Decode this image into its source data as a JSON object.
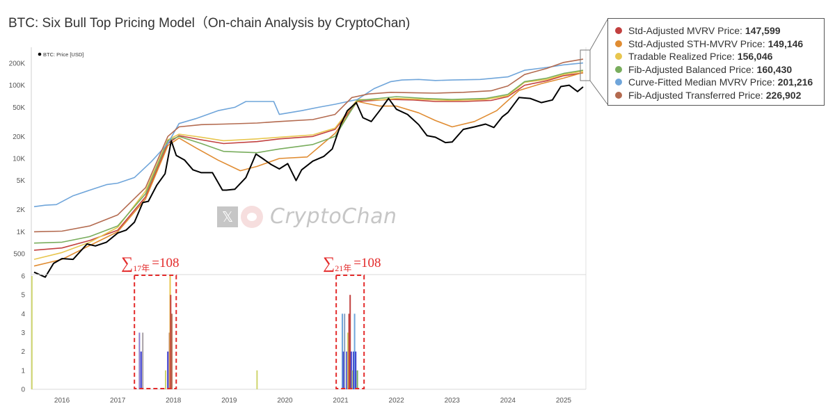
{
  "title": "BTC: Six Bull Top Pricing Model（On-chain Analysis by CryptoChan)",
  "watermark": "CryptoChan",
  "watermark_icon": "x-logo-icon",
  "chart_data": [
    {
      "type": "line",
      "log_scale": true,
      "legend_label": "BTC: Price [USD]",
      "y_ticks": [
        500,
        1000,
        2000,
        5000,
        10000,
        20000,
        50000,
        100000,
        200000
      ],
      "y_tick_labels": [
        "500",
        "1K",
        "2K",
        "5K",
        "10K",
        "20K",
        "50K",
        "100K",
        "200K"
      ],
      "x_ticks": [
        2016,
        2017,
        2018,
        2019,
        2020,
        2021,
        2022,
        2023,
        2024,
        2025
      ],
      "x_range": [
        2015.45,
        2025.4
      ],
      "y_range": [
        260,
        330000
      ],
      "grid": false,
      "series": [
        {
          "name": "BTC: Price [USD]",
          "color": "#000000",
          "x": [
            2015.5,
            2015.7,
            2015.85,
            2016.0,
            2016.2,
            2016.45,
            2016.6,
            2016.8,
            2017.0,
            2017.15,
            2017.3,
            2017.45,
            2017.55,
            2017.7,
            2017.85,
            2017.96,
            2018.05,
            2018.2,
            2018.35,
            2018.5,
            2018.7,
            2018.88,
            2018.95,
            2019.1,
            2019.3,
            2019.48,
            2019.6,
            2019.75,
            2019.9,
            2020.05,
            2020.2,
            2020.3,
            2020.5,
            2020.7,
            2020.85,
            2021.0,
            2021.12,
            2021.28,
            2021.4,
            2021.55,
            2021.7,
            2021.86,
            2022.0,
            2022.2,
            2022.4,
            2022.55,
            2022.7,
            2022.88,
            2023.0,
            2023.2,
            2023.4,
            2023.6,
            2023.75,
            2023.9,
            2024.0,
            2024.2,
            2024.4,
            2024.6,
            2024.8,
            2024.95,
            2025.1,
            2025.25,
            2025.35
          ],
          "y": [
            280,
            240,
            370,
            430,
            420,
            680,
            640,
            720,
            960,
            1050,
            1350,
            2500,
            2600,
            4300,
            6200,
            17500,
            11000,
            9500,
            7000,
            6400,
            6400,
            3700,
            3700,
            3800,
            5500,
            11500,
            10000,
            8300,
            7200,
            8500,
            5000,
            7000,
            9200,
            10700,
            13500,
            29000,
            45000,
            58000,
            36000,
            32000,
            45000,
            66000,
            47000,
            40000,
            29000,
            20500,
            19500,
            16500,
            16800,
            25000,
            27000,
            29500,
            26500,
            37000,
            42500,
            68000,
            66000,
            58000,
            63000,
            96000,
            100000,
            82000,
            95000
          ]
        },
        {
          "name": "Std-Adjusted MVRV Price",
          "color": "#c2403f",
          "x": [
            2015.5,
            2016.0,
            2016.5,
            2017.0,
            2017.5,
            2017.9,
            2018.1,
            2018.5,
            2018.9,
            2019.5,
            2019.9,
            2020.5,
            2020.9,
            2021.3,
            2021.6,
            2021.9,
            2022.3,
            2022.7,
            2023.2,
            2023.7,
            2024.0,
            2024.3,
            2024.7,
            2025.0,
            2025.35
          ],
          "y": [
            560,
            600,
            760,
            1050,
            3000,
            16000,
            20500,
            18000,
            16000,
            17000,
            18500,
            20000,
            25000,
            60000,
            62000,
            64000,
            63000,
            60000,
            60000,
            62000,
            70000,
            100000,
            115000,
            135000,
            147599
          ]
        },
        {
          "name": "Std-Adjusted STH-MVRV Price",
          "color": "#e08c32",
          "x": [
            2015.5,
            2016.0,
            2016.5,
            2017.0,
            2017.5,
            2017.9,
            2018.1,
            2018.4,
            2018.8,
            2019.2,
            2019.5,
            2019.9,
            2020.4,
            2020.9,
            2021.3,
            2021.7,
            2022.0,
            2022.4,
            2022.7,
            2023.0,
            2023.4,
            2023.8,
            2024.2,
            2024.6,
            2025.0,
            2025.35
          ],
          "y": [
            340,
            420,
            650,
            1000,
            2800,
            15000,
            19000,
            14000,
            9500,
            6800,
            7800,
            10000,
            10500,
            22000,
            60000,
            52000,
            52000,
            42000,
            33000,
            27000,
            32000,
            45000,
            85000,
            105000,
            125000,
            149146
          ]
        },
        {
          "name": "Tradable Realized Price",
          "color": "#e8c64e",
          "x": [
            2015.5,
            2016.0,
            2016.5,
            2017.0,
            2017.5,
            2017.9,
            2018.1,
            2018.5,
            2018.9,
            2019.5,
            2019.9,
            2020.5,
            2020.9,
            2021.3,
            2021.7,
            2022.0,
            2022.5,
            2023.0,
            2023.6,
            2024.0,
            2024.3,
            2024.7,
            2025.0,
            2025.35
          ],
          "y": [
            420,
            520,
            720,
            1150,
            3600,
            18000,
            21500,
            19500,
            17500,
            18500,
            19500,
            21000,
            26000,
            64000,
            63000,
            66000,
            64000,
            62000,
            64000,
            72000,
            110000,
            120000,
            140000,
            156046
          ]
        },
        {
          "name": "Fib-Adjusted Balanced Price",
          "color": "#79ad5d",
          "x": [
            2015.5,
            2016.0,
            2016.5,
            2017.0,
            2017.5,
            2017.9,
            2018.1,
            2018.5,
            2018.9,
            2019.5,
            2019.9,
            2020.5,
            2020.9,
            2021.3,
            2021.7,
            2022.0,
            2022.5,
            2023.0,
            2023.6,
            2024.0,
            2024.3,
            2024.7,
            2025.0,
            2025.35
          ],
          "y": [
            700,
            720,
            860,
            1200,
            3300,
            17500,
            20000,
            16000,
            12500,
            12000,
            13500,
            15500,
            20000,
            62000,
            66000,
            70000,
            66000,
            64000,
            66000,
            75000,
            112000,
            125000,
            145000,
            160430
          ]
        },
        {
          "name": "Curve-Fitted Median MVRV Price",
          "color": "#6fa5da",
          "x": [
            2015.5,
            2015.7,
            2015.9,
            2016.2,
            2016.5,
            2016.8,
            2017.0,
            2017.3,
            2017.6,
            2017.9,
            2018.1,
            2018.4,
            2018.8,
            2019.1,
            2019.3,
            2019.8,
            2019.9,
            2020.3,
            2020.6,
            2020.9,
            2021.3,
            2021.6,
            2021.9,
            2022.1,
            2022.4,
            2022.7,
            2023.0,
            2023.5,
            2024.0,
            2024.3,
            2024.7,
            2025.0,
            2025.35
          ],
          "y": [
            2200,
            2300,
            2350,
            3100,
            3700,
            4400,
            4600,
            5500,
            9000,
            16000,
            30000,
            35000,
            45000,
            50000,
            60000,
            60000,
            40000,
            45000,
            50000,
            55000,
            64000,
            90000,
            112000,
            118000,
            120000,
            116000,
            118000,
            120000,
            130000,
            160000,
            175000,
            190000,
            201216
          ]
        },
        {
          "name": "Fib-Adjusted Transferred Price",
          "color": "#b36a4f",
          "x": [
            2015.5,
            2016.0,
            2016.5,
            2017.0,
            2017.5,
            2017.9,
            2018.1,
            2018.5,
            2018.9,
            2019.5,
            2019.9,
            2020.5,
            2020.9,
            2021.2,
            2021.5,
            2021.9,
            2022.3,
            2022.7,
            2023.2,
            2023.7,
            2024.0,
            2024.3,
            2024.7,
            2025.0,
            2025.35
          ],
          "y": [
            1000,
            1020,
            1200,
            1700,
            4000,
            20000,
            27000,
            29000,
            29500,
            30500,
            32000,
            34000,
            40000,
            68000,
            76000,
            80000,
            79000,
            78000,
            80000,
            84000,
            98000,
            140000,
            170000,
            205000,
            226902
          ]
        }
      ]
    },
    {
      "type": "bar",
      "y_ticks": [
        0,
        1,
        2,
        3,
        4,
        5,
        6
      ],
      "y_range": [
        0,
        6
      ],
      "x_ticks": [
        2016,
        2017,
        2018,
        2019,
        2020,
        2021,
        2022,
        2023,
        2024,
        2025
      ],
      "x_range": [
        2015.45,
        2025.4
      ],
      "annotations": [
        {
          "text_prefix": "∑",
          "subscript": "17年",
          "text_suffix": "=108",
          "x_start": 2017.3,
          "x_end": 2018.05
        },
        {
          "text_prefix": "∑",
          "subscript": "21年",
          "text_suffix": "=108",
          "x_start": 2020.92,
          "x_end": 2021.42
        }
      ],
      "bars": [
        {
          "x": 2015.46,
          "value": 6,
          "color": "#cfd56e"
        },
        {
          "x": 2017.39,
          "value": 3,
          "color": "#8d7fd0"
        },
        {
          "x": 2017.42,
          "value": 2,
          "color": "#3d3fd1"
        },
        {
          "x": 2017.45,
          "value": 3,
          "color": "#a7a0a6"
        },
        {
          "x": 2017.86,
          "value": 1,
          "color": "#cfd56e"
        },
        {
          "x": 2017.9,
          "value": 2,
          "color": "#3d3fd1"
        },
        {
          "x": 2017.93,
          "value": 3,
          "color": "#b36a4f"
        },
        {
          "x": 2017.94,
          "value": 6,
          "color": "#e8c64e"
        },
        {
          "x": 2017.95,
          "value": 5,
          "color": "#c2403f"
        },
        {
          "x": 2017.97,
          "value": 4,
          "color": "#b36a4f"
        },
        {
          "x": 2019.5,
          "value": 1,
          "color": "#cfd56e"
        },
        {
          "x": 2021.03,
          "value": 4,
          "color": "#6fa5da"
        },
        {
          "x": 2021.05,
          "value": 2,
          "color": "#3d3fd1"
        },
        {
          "x": 2021.07,
          "value": 4,
          "color": "#8aa0c0"
        },
        {
          "x": 2021.11,
          "value": 2,
          "color": "#3d3fd1"
        },
        {
          "x": 2021.13,
          "value": 3,
          "color": "#cfd56e"
        },
        {
          "x": 2021.15,
          "value": 4,
          "color": "#c2403f"
        },
        {
          "x": 2021.17,
          "value": 5,
          "color": "#c2403f"
        },
        {
          "x": 2021.19,
          "value": 2,
          "color": "#3d3fd1"
        },
        {
          "x": 2021.21,
          "value": 1,
          "color": "#cfd56e"
        },
        {
          "x": 2021.23,
          "value": 2,
          "color": "#3d3fd1"
        },
        {
          "x": 2021.25,
          "value": 4,
          "color": "#6fa5da"
        },
        {
          "x": 2021.27,
          "value": 2,
          "color": "#3d3fd1"
        },
        {
          "x": 2021.3,
          "value": 1,
          "color": "#79ad5d"
        }
      ]
    }
  ],
  "legend": [
    {
      "label": "Std-Adjusted MVRV Price:",
      "value": "147,599",
      "color": "#c2403f"
    },
    {
      "label": "Std-Adjusted STH-MVRV Price:",
      "value": "149,146",
      "color": "#e08c32"
    },
    {
      "label": "Tradable Realized Price:",
      "value": "156,046",
      "color": "#e8c64e"
    },
    {
      "label": "Fib-Adjusted Balanced Price:",
      "value": "160,430",
      "color": "#79ad5d"
    },
    {
      "label": "Curve-Fitted Median MVRV Price:",
      "value": "201,216",
      "color": "#6fa5da"
    },
    {
      "label": "Fib-Adjusted Transferred Price:",
      "value": "226,902",
      "color": "#b36a4f"
    }
  ]
}
